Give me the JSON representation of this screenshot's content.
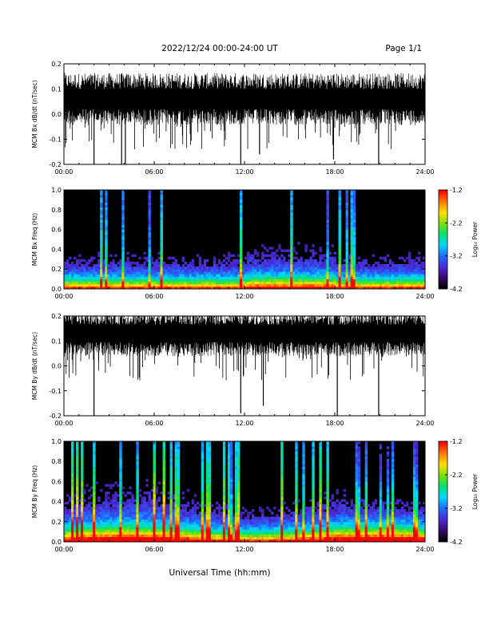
{
  "header": {
    "title": "2022/12/24  00:00-24:00 UT",
    "page": "Page 1/1"
  },
  "footer": {
    "xlabel": "Universal Time (hh:mm)"
  },
  "colormap": {
    "stops": [
      "#000000",
      "#3a0a6e",
      "#4a2ad8",
      "#1e6eff",
      "#00d7ff",
      "#00e070",
      "#7ee000",
      "#ffe000",
      "#ff7a00",
      "#ff0000"
    ]
  },
  "chart_data": [
    {
      "type": "line",
      "id": "bx_dbdt",
      "ylabel": "MCM Bx dB/dt (nT/sec)",
      "ylim": [
        -0.2,
        0.2
      ],
      "yticks": [
        "-0.2",
        "-0.1",
        "0.0",
        "0.1",
        "0.2"
      ],
      "xlim": [
        "00:00",
        "24:00"
      ],
      "xticks": [
        "00:00",
        "06:00",
        "12:00",
        "18:00",
        "24:00"
      ],
      "baseline": 0.04,
      "band": [
        -0.02,
        0.14
      ],
      "spikes": [
        {
          "t": "02:00",
          "v": -0.2
        },
        {
          "t": "03:50",
          "v": -0.2
        },
        {
          "t": "04:05",
          "v": -0.2
        },
        {
          "t": "11:45",
          "v": -0.2
        },
        {
          "t": "13:00",
          "v": -0.16
        },
        {
          "t": "17:55",
          "v": -0.18
        },
        {
          "t": "20:55",
          "v": -0.2
        }
      ]
    },
    {
      "type": "heatmap",
      "id": "bx_spec",
      "ylabel": "MCM Bx Freq (Hz)",
      "ylim": [
        0.0,
        1.0
      ],
      "yticks": [
        "0.0",
        "0.2",
        "0.4",
        "0.6",
        "0.8",
        "1.0"
      ],
      "xlim": [
        "00:00",
        "24:00"
      ],
      "xticks": [
        "00:00",
        "06:00",
        "12:00",
        "18:00",
        "24:00"
      ],
      "colorbar": {
        "label": "Log₁₀ Power",
        "range": [
          -4.2,
          -1.2
        ],
        "ticks": [
          "-1.2",
          "-2.2",
          "-3.2",
          "-4.2"
        ]
      }
    },
    {
      "type": "line",
      "id": "by_dbdt",
      "ylabel": "MCM By dB/dt (nT/sec)",
      "ylim": [
        -0.2,
        0.2
      ],
      "yticks": [
        "-0.2",
        "-0.1",
        "0.0",
        "0.1",
        "0.2"
      ],
      "xlim": [
        "00:00",
        "24:00"
      ],
      "xticks": [
        "00:00",
        "06:00",
        "12:00",
        "18:00",
        "24:00"
      ],
      "baseline": 0.13,
      "band": [
        0.06,
        0.2
      ],
      "spikes": [
        {
          "t": "02:00",
          "v": -0.2
        },
        {
          "t": "11:45",
          "v": -0.19
        },
        {
          "t": "13:15",
          "v": -0.16
        },
        {
          "t": "18:10",
          "v": -0.2
        },
        {
          "t": "20:55",
          "v": -0.2
        }
      ]
    },
    {
      "type": "heatmap",
      "id": "by_spec",
      "ylabel": "MCM By Freq (Hz)",
      "ylim": [
        0.0,
        1.0
      ],
      "yticks": [
        "0.0",
        "0.2",
        "0.4",
        "0.6",
        "0.8",
        "1.0"
      ],
      "xlim": [
        "00:00",
        "24:00"
      ],
      "xticks": [
        "00:00",
        "06:00",
        "12:00",
        "18:00",
        "24:00"
      ],
      "colorbar": {
        "label": "Log₁₀ Power",
        "range": [
          -4.2,
          -1.2
        ],
        "ticks": [
          "-1.2",
          "-2.2",
          "-3.2",
          "-4.2"
        ]
      }
    }
  ]
}
